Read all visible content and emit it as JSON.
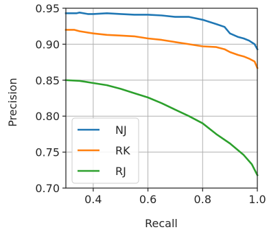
{
  "chart_data": {
    "type": "line",
    "xlabel": "Recall",
    "ylabel": "Precision",
    "xlim": [
      0.3,
      1.0
    ],
    "ylim": [
      0.7,
      0.95
    ],
    "xticks": [
      "0.4",
      "0.6",
      "0.8",
      "1.0"
    ],
    "xtick_values": [
      0.4,
      0.6,
      0.8,
      1.0
    ],
    "yticks": [
      "0.70",
      "0.75",
      "0.80",
      "0.85",
      "0.90",
      "0.95"
    ],
    "ytick_values": [
      0.7,
      0.75,
      0.8,
      0.85,
      0.9,
      0.95
    ],
    "grid": true,
    "legend_position": "lower-left",
    "series": [
      {
        "name": "NJ",
        "color": "#1f77b4",
        "x": [
          0.3,
          0.34,
          0.35,
          0.38,
          0.4,
          0.45,
          0.5,
          0.55,
          0.6,
          0.65,
          0.7,
          0.75,
          0.8,
          0.85,
          0.88,
          0.9,
          0.93,
          0.95,
          0.97,
          0.99,
          1.0
        ],
        "y": [
          0.943,
          0.943,
          0.944,
          0.942,
          0.942,
          0.943,
          0.942,
          0.941,
          0.941,
          0.94,
          0.938,
          0.938,
          0.934,
          0.928,
          0.924,
          0.915,
          0.91,
          0.908,
          0.905,
          0.9,
          0.893
        ]
      },
      {
        "name": "RK",
        "color": "#ff7f0e",
        "x": [
          0.3,
          0.33,
          0.35,
          0.4,
          0.45,
          0.5,
          0.55,
          0.6,
          0.65,
          0.7,
          0.75,
          0.8,
          0.85,
          0.88,
          0.9,
          0.93,
          0.95,
          0.97,
          0.99,
          1.0
        ],
        "y": [
          0.92,
          0.92,
          0.918,
          0.915,
          0.913,
          0.912,
          0.911,
          0.908,
          0.906,
          0.903,
          0.9,
          0.897,
          0.896,
          0.893,
          0.889,
          0.885,
          0.883,
          0.88,
          0.876,
          0.867
        ]
      },
      {
        "name": "RJ",
        "color": "#2ca02c",
        "x": [
          0.3,
          0.35,
          0.4,
          0.45,
          0.5,
          0.55,
          0.6,
          0.65,
          0.7,
          0.75,
          0.8,
          0.85,
          0.9,
          0.95,
          0.98,
          1.0
        ],
        "y": [
          0.85,
          0.849,
          0.846,
          0.843,
          0.838,
          0.832,
          0.826,
          0.818,
          0.809,
          0.8,
          0.79,
          0.775,
          0.762,
          0.746,
          0.733,
          0.718
        ]
      }
    ]
  }
}
